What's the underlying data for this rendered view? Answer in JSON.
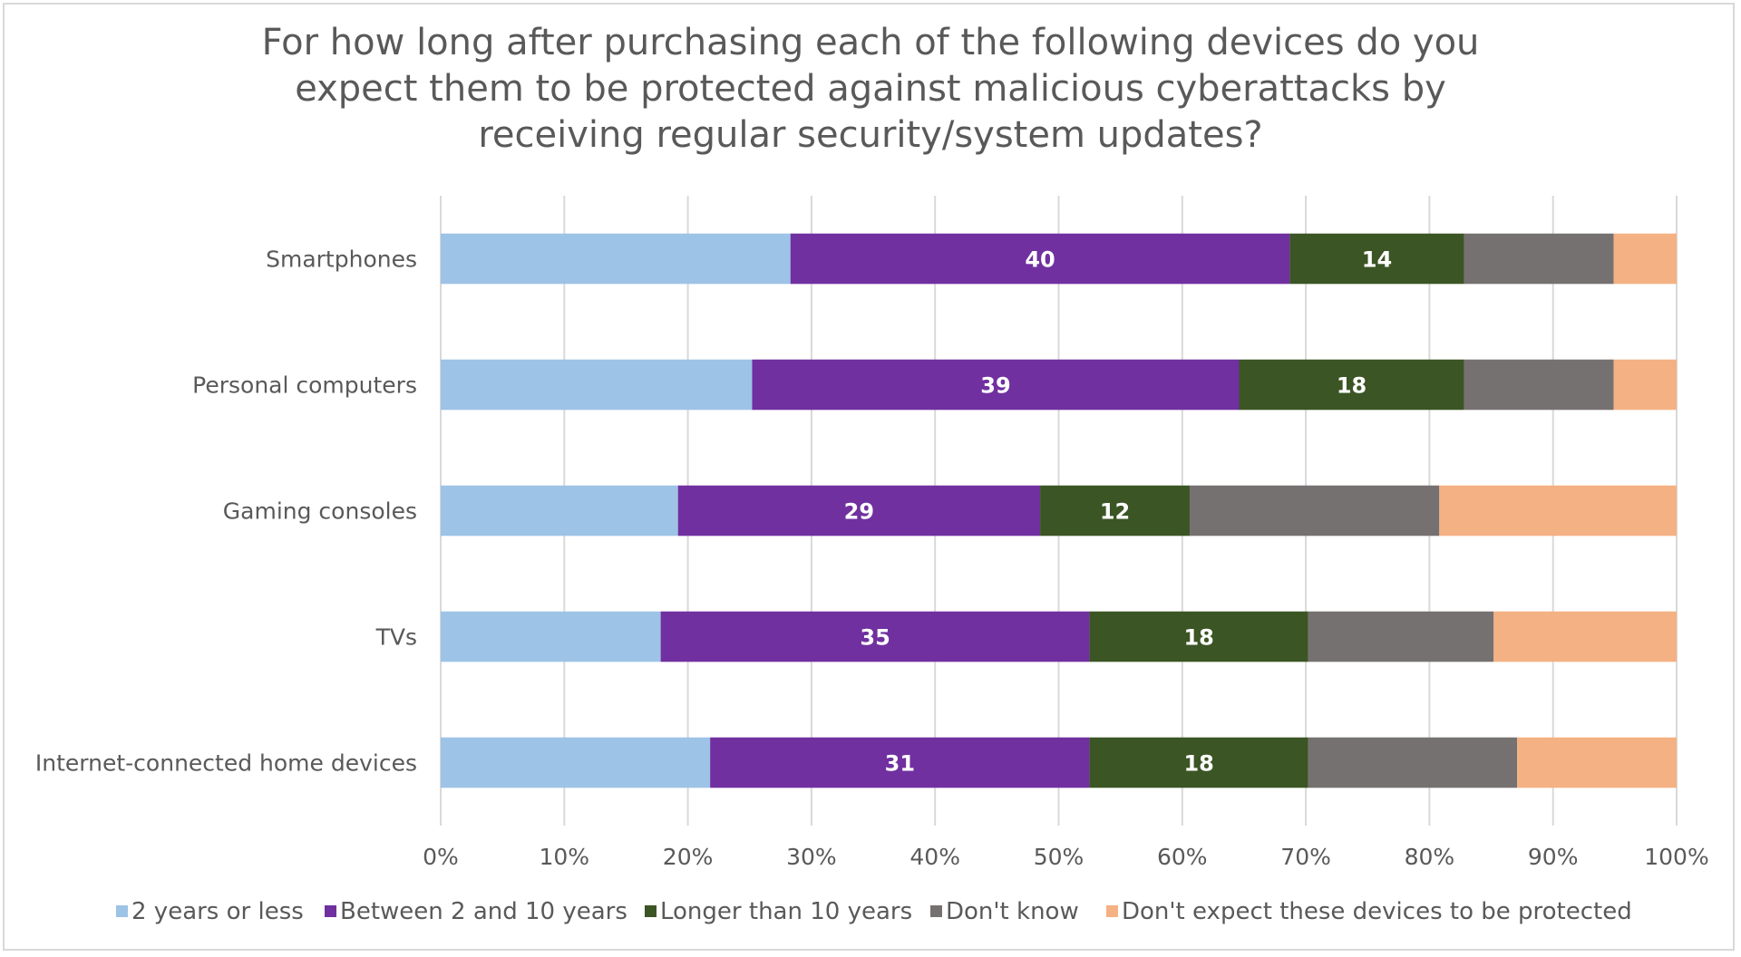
{
  "chart_data": {
    "type": "bar",
    "orientation": "horizontal",
    "stacked": "percent",
    "title": "For how long after purchasing each of the following devices do you expect them to be protected against malicious cyberattacks by receiving regular security/system updates?",
    "title_lines": [
      "For how long after purchasing each of the following devices do you",
      "expect them to be protected against malicious cyberattacks by",
      "receiving regular security/system updates?"
    ],
    "xlabel": "",
    "ylabel": "",
    "xlim": [
      0,
      100
    ],
    "x_ticks": [
      "0%",
      "10%",
      "20%",
      "30%",
      "40%",
      "50%",
      "60%",
      "70%",
      "80%",
      "90%",
      "100%"
    ],
    "grid": "vertical",
    "legend_position": "bottom",
    "categories": [
      "Smartphones",
      "Personal computers",
      "Gaming consoles",
      "TVs",
      "Internet-connected home devices"
    ],
    "series": [
      {
        "name": "2 years or less",
        "color": "#9dc3e6",
        "values": [
          28.3,
          25.2,
          19.2,
          17.8,
          21.8
        ],
        "labels": [
          null,
          null,
          null,
          null,
          null
        ]
      },
      {
        "name": "Between 2 and 10 years",
        "color": "#7030a0",
        "values": [
          40.4,
          39.4,
          29.3,
          34.7,
          30.7
        ],
        "labels": [
          "40",
          "39",
          "29",
          "35",
          "31"
        ]
      },
      {
        "name": "Longer than 10 years",
        "color": "#3b5524",
        "values": [
          14.1,
          18.2,
          12.1,
          17.7,
          17.7
        ],
        "labels": [
          "14",
          "18",
          "12",
          "18",
          "18"
        ]
      },
      {
        "name": "Don't know",
        "color": "#767171",
        "values": [
          12.1,
          12.1,
          20.2,
          15.0,
          16.9
        ],
        "labels": [
          null,
          null,
          null,
          null,
          null
        ]
      },
      {
        "name": "Don't expect these devices to be protected",
        "color": "#f4b183",
        "values": [
          5.1,
          5.1,
          19.2,
          14.8,
          12.9
        ],
        "labels": [
          null,
          null,
          null,
          null,
          null
        ]
      }
    ]
  }
}
